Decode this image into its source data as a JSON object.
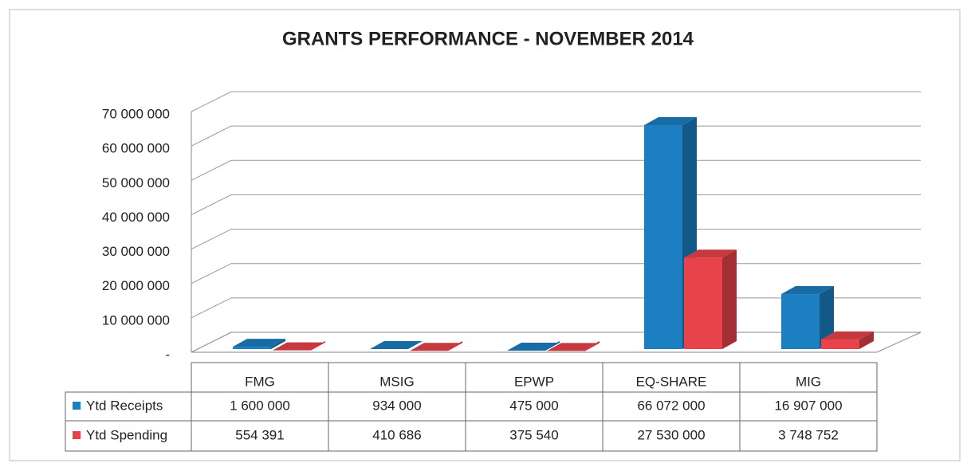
{
  "chart_data": {
    "type": "bar3d",
    "title": "GRANTS PERFORMANCE - NOVEMBER 2014",
    "categories": [
      "FMG",
      "MSIG",
      "EPWP",
      "EQ-SHARE",
      "MIG"
    ],
    "series": [
      {
        "name": "Ytd Receipts",
        "color": "#1b7fc2",
        "values": [
          1600000,
          934000,
          475000,
          66072000,
          16907000
        ],
        "value_labels": [
          "1 600 000",
          "934 000",
          "475 000",
          "66 072 000",
          "16 907 000"
        ]
      },
      {
        "name": "Ytd Spending",
        "color": "#e8434a",
        "values": [
          554391,
          410686,
          375540,
          27530000,
          3748752
        ],
        "value_labels": [
          "554 391",
          "410 686",
          "375 540",
          "27 530 000",
          "3 748 752"
        ]
      }
    ],
    "ylim": [
      0,
      70000000
    ],
    "yticks": [
      {
        "value": 0,
        "label": "-"
      },
      {
        "value": 10000000,
        "label": "10 000 000"
      },
      {
        "value": 20000000,
        "label": "20 000 000"
      },
      {
        "value": 30000000,
        "label": "30 000 000"
      },
      {
        "value": 40000000,
        "label": "40 000 000"
      },
      {
        "value": 50000000,
        "label": "50 000 000"
      },
      {
        "value": 60000000,
        "label": "60 000 000"
      },
      {
        "value": 70000000,
        "label": "70 000 000"
      }
    ],
    "grid": true,
    "legend": "table"
  }
}
